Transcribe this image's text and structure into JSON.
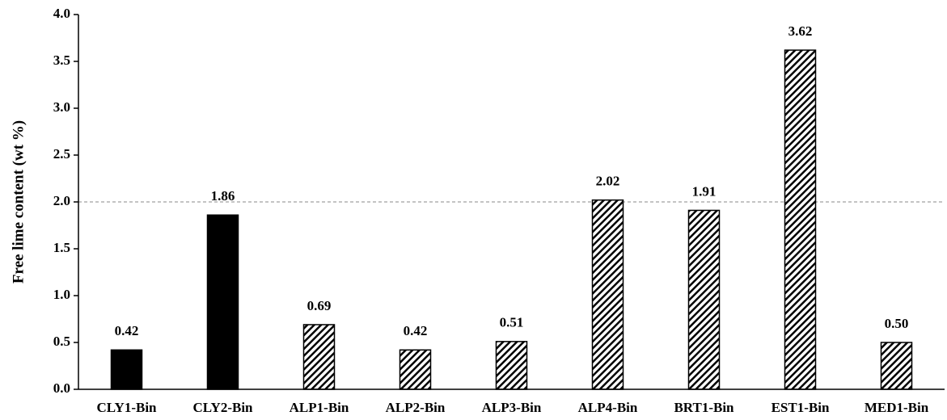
{
  "chart_data": {
    "type": "bar",
    "y_label": "Free lime content (wt %)",
    "categories": [
      "CLY1-Bin",
      "CLY2-Bin",
      "ALP1-Bin",
      "ALP2-Bin",
      "ALP3-Bin",
      "ALP4-Bin",
      "BRT1-Bin",
      "EST1-Bin",
      "MED1-Bin"
    ],
    "values": [
      0.42,
      1.86,
      0.69,
      0.42,
      0.51,
      2.02,
      1.91,
      3.62,
      0.5
    ],
    "value_labels": [
      "0.42",
      "1.86",
      "0.69",
      "0.42",
      "0.51",
      "2.02",
      "1.91",
      "3.62",
      "0.50"
    ],
    "bar_styles": [
      "solid",
      "solid",
      "hatch",
      "hatch",
      "hatch",
      "hatch",
      "hatch",
      "hatch",
      "hatch"
    ],
    "color": "#000000",
    "reference_line": 2,
    "ylim": [
      0,
      4
    ],
    "yticks": [
      {
        "value": 0,
        "label": "0.0"
      },
      0.5,
      {
        "value": 1,
        "label": "1.0"
      },
      1.5,
      {
        "value": 2,
        "label": "2.0"
      },
      2.5,
      {
        "value": 3,
        "label": "3.0"
      },
      3.5,
      {
        "value": 4,
        "label": "4.0"
      }
    ],
    "grid": false
  }
}
